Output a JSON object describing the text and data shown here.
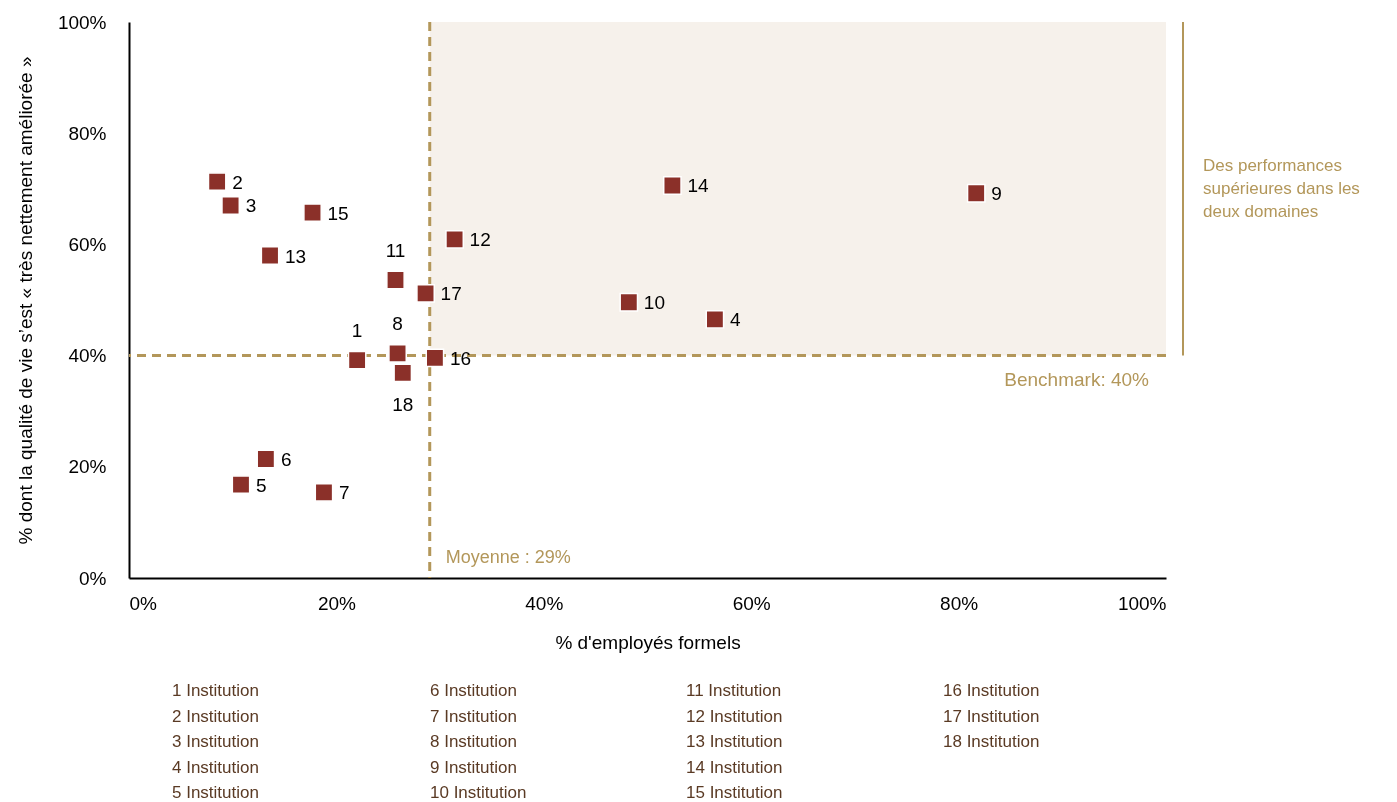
{
  "chart_data": {
    "type": "scatter",
    "xlabel": "% d'employés formels",
    "ylabel": "% dont la qualité de vie s’est « très nettement améliorée »",
    "series": [
      {
        "name": "1",
        "color": "#8b3029",
        "x": [
          22.0
        ],
        "values": [
          39.2
        ]
      },
      {
        "name": "2",
        "color": "#8b3029",
        "x": [
          8.5
        ],
        "values": [
          71.3
        ]
      },
      {
        "name": "3",
        "color": "#8b3029",
        "x": [
          9.8
        ],
        "values": [
          67.0
        ]
      },
      {
        "name": "4",
        "color": "#8b3029",
        "x": [
          56.5
        ],
        "values": [
          46.5
        ]
      },
      {
        "name": "5",
        "color": "#8b3029",
        "x": [
          10.8
        ],
        "values": [
          16.8
        ]
      },
      {
        "name": "6",
        "color": "#8b3029",
        "x": [
          13.2
        ],
        "values": [
          21.4
        ]
      },
      {
        "name": "7",
        "color": "#8b3029",
        "x": [
          18.8
        ],
        "values": [
          15.4
        ]
      },
      {
        "name": "8",
        "color": "#8b3029",
        "x": [
          25.9
        ],
        "values": [
          40.4
        ]
      },
      {
        "name": "9",
        "color": "#8b3029",
        "x": [
          81.7
        ],
        "values": [
          69.2
        ]
      },
      {
        "name": "10",
        "color": "#8b3029",
        "x": [
          48.2
        ],
        "values": [
          49.6
        ]
      },
      {
        "name": "11",
        "color": "#8b3029",
        "x": [
          25.7
        ],
        "values": [
          53.6
        ]
      },
      {
        "name": "12",
        "color": "#8b3029",
        "x": [
          31.4
        ],
        "values": [
          60.9
        ]
      },
      {
        "name": "13",
        "color": "#8b3029",
        "x": [
          13.6
        ],
        "values": [
          58.0
        ]
      },
      {
        "name": "14",
        "color": "#8b3029",
        "x": [
          52.4
        ],
        "values": [
          70.6
        ]
      },
      {
        "name": "15",
        "color": "#8b3029",
        "x": [
          17.7
        ],
        "values": [
          65.7
        ]
      },
      {
        "name": "16",
        "color": "#8b3029",
        "x": [
          29.5
        ],
        "values": [
          39.6
        ]
      },
      {
        "name": "17",
        "color": "#8b3029",
        "x": [
          28.6
        ],
        "values": [
          51.2
        ]
      },
      {
        "name": "18",
        "color": "#8b3029",
        "x": [
          26.4
        ],
        "values": [
          36.9
        ]
      }
    ],
    "marker": "square",
    "xlim": [
      0,
      100
    ],
    "ylim": [
      0,
      100
    ],
    "xticks": [
      {
        "value": 0,
        "label": "0%"
      },
      {
        "value": 20,
        "label": "20%"
      },
      {
        "value": 40,
        "label": "40%"
      },
      {
        "value": 60,
        "label": "60%"
      },
      {
        "value": 80,
        "label": "80%"
      },
      {
        "value": 100,
        "label": "100%"
      }
    ],
    "yticks": [
      {
        "value": 0,
        "label": "0%"
      },
      {
        "value": 20,
        "label": "20%"
      },
      {
        "value": 40,
        "label": "40%"
      },
      {
        "value": 60,
        "label": "60%"
      },
      {
        "value": 80,
        "label": "80%"
      },
      {
        "value": 100,
        "label": "100%"
      }
    ],
    "ref_lines": [
      {
        "axis": "x",
        "value": 29,
        "label": "Moyenne : 29%",
        "color": "#b3975a",
        "line_style": "dashed"
      },
      {
        "axis": "y",
        "value": 40,
        "label": "Benchmark: 40%",
        "color": "#b3975a",
        "line_style": "dashed"
      }
    ],
    "bands": [
      {
        "axis": "y",
        "from": 40,
        "to": 100,
        "label": "Des performances supérieures dans les deux domaines",
        "color": "#f6f1eb"
      }
    ],
    "annotations": [
      "1 Institution",
      "2 Institution",
      "3 Institution",
      "4 Institution",
      "5 Institution",
      "6 Institution",
      "7 Institution",
      "8 Institution",
      "9 Institution",
      "10 Institution",
      "11 Institution",
      "12 Institution",
      "13 Institution",
      "14 Institution",
      "15 Institution",
      "16 Institution",
      "17 Institution",
      "18 Institution"
    ]
  }
}
